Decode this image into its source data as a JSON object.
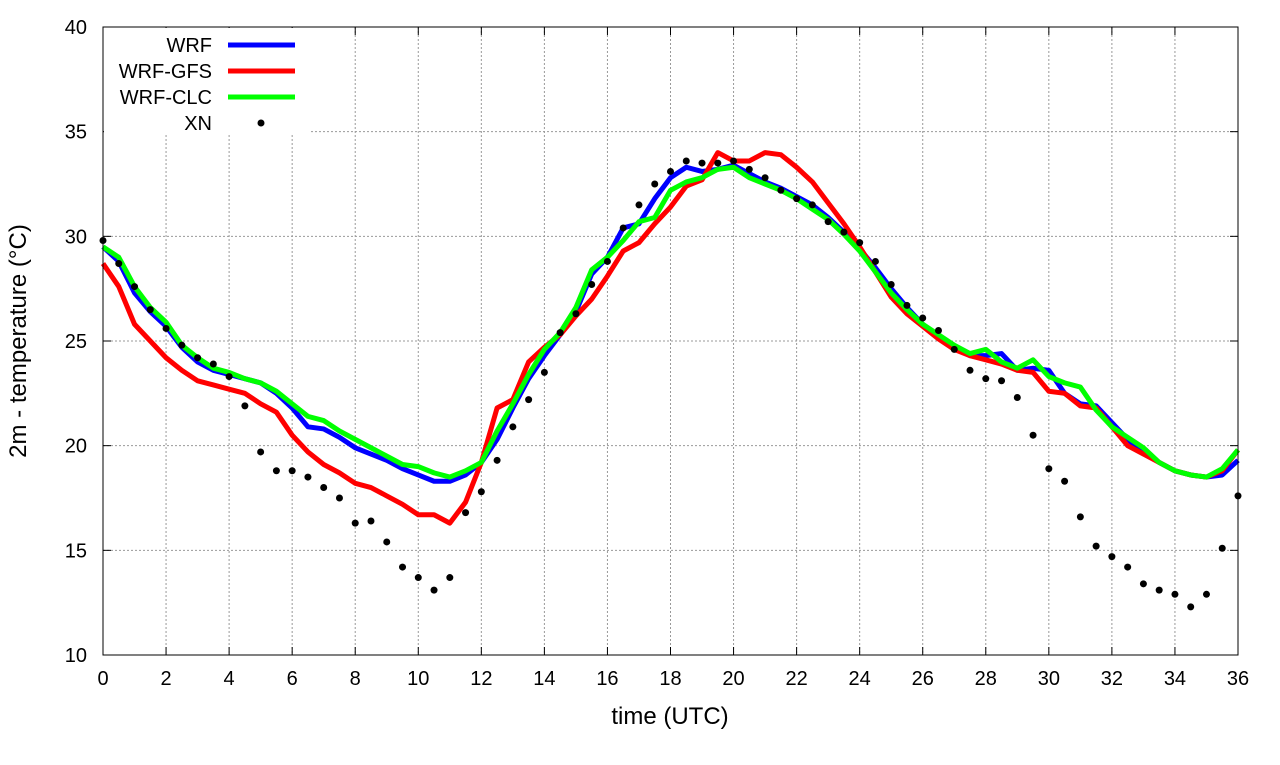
{
  "chart_data": {
    "type": "line",
    "title": "",
    "xlabel": "time (UTC)",
    "ylabel": "2m - temperature (°C)",
    "xlim": [
      0,
      36
    ],
    "ylim": [
      10,
      40
    ],
    "xticks": [
      0,
      2,
      4,
      6,
      8,
      10,
      12,
      14,
      16,
      18,
      20,
      22,
      24,
      26,
      28,
      30,
      32,
      34,
      36
    ],
    "yticks": [
      10,
      15,
      20,
      25,
      30,
      35,
      40
    ],
    "grid": true,
    "legend": "top-left",
    "x": [
      0,
      0.5,
      1,
      1.5,
      2,
      2.5,
      3,
      3.5,
      4,
      4.5,
      5,
      5.5,
      6,
      6.5,
      7,
      7.5,
      8,
      8.5,
      9,
      9.5,
      10,
      10.5,
      11,
      11.5,
      12,
      12.5,
      13,
      13.5,
      14,
      14.5,
      15,
      15.5,
      16,
      16.5,
      17,
      17.5,
      18,
      18.5,
      19,
      19.5,
      20,
      20.5,
      21,
      21.5,
      22,
      22.5,
      23,
      23.5,
      24,
      24.5,
      25,
      25.5,
      26,
      26.5,
      27,
      27.5,
      28,
      28.5,
      29,
      29.5,
      30,
      30.5,
      31,
      31.5,
      32,
      32.5,
      33,
      33.5,
      34,
      34.5,
      35,
      35.5,
      36
    ],
    "series": [
      {
        "name": "WRF",
        "style": "line",
        "color": "#0000ff",
        "values": [
          29.5,
          28.8,
          27.3,
          26.4,
          25.7,
          24.7,
          24.0,
          23.6,
          23.4,
          23.2,
          23.0,
          22.5,
          21.8,
          20.9,
          20.8,
          20.4,
          19.9,
          19.6,
          19.3,
          18.9,
          18.6,
          18.3,
          18.3,
          18.6,
          19.2,
          20.3,
          21.8,
          23.2,
          24.3,
          25.3,
          26.4,
          28.2,
          29.0,
          30.4,
          30.6,
          31.8,
          32.8,
          33.3,
          33.1,
          33.2,
          33.4,
          33.0,
          32.6,
          32.3,
          31.9,
          31.5,
          30.9,
          30.2,
          29.4,
          28.5,
          27.5,
          26.6,
          25.8,
          25.2,
          24.7,
          24.3,
          24.3,
          24.4,
          23.6,
          23.7,
          23.6,
          22.5,
          22.0,
          21.9,
          21.1,
          20.3,
          19.7,
          19.2,
          18.8,
          18.6,
          18.5,
          18.6,
          19.3
        ]
      },
      {
        "name": "WRF-GFS",
        "style": "line",
        "color": "#ff0000",
        "values": [
          28.7,
          27.6,
          25.8,
          25.0,
          24.2,
          23.6,
          23.1,
          22.9,
          22.7,
          22.5,
          22.0,
          21.6,
          20.5,
          19.7,
          19.1,
          18.7,
          18.2,
          18.0,
          17.6,
          17.2,
          16.7,
          16.7,
          16.3,
          17.3,
          19.2,
          21.8,
          22.2,
          24.0,
          24.7,
          25.3,
          26.2,
          27.0,
          28.1,
          29.3,
          29.7,
          30.6,
          31.4,
          32.4,
          32.7,
          34.0,
          33.6,
          33.6,
          34.0,
          33.9,
          33.3,
          32.6,
          31.6,
          30.6,
          29.5,
          28.3,
          27.1,
          26.3,
          25.7,
          25.1,
          24.6,
          24.3,
          24.1,
          23.9,
          23.6,
          23.5,
          22.6,
          22.5,
          21.9,
          21.8,
          20.9,
          20.0,
          19.6,
          19.2,
          18.8,
          18.6,
          18.5,
          18.8,
          19.8
        ]
      },
      {
        "name": "WRF-CLC",
        "style": "line",
        "color": "#00ff00",
        "values": [
          29.5,
          29.0,
          27.6,
          26.6,
          25.9,
          24.8,
          24.2,
          23.7,
          23.5,
          23.2,
          23.0,
          22.6,
          22.0,
          21.4,
          21.2,
          20.7,
          20.3,
          19.9,
          19.5,
          19.1,
          19.0,
          18.7,
          18.5,
          18.8,
          19.2,
          20.7,
          22.0,
          23.4,
          24.6,
          25.4,
          26.6,
          28.4,
          29.0,
          29.8,
          30.7,
          30.9,
          32.2,
          32.6,
          32.8,
          33.2,
          33.3,
          32.8,
          32.5,
          32.2,
          31.8,
          31.3,
          30.8,
          30.1,
          29.3,
          28.3,
          27.3,
          26.5,
          25.8,
          25.3,
          24.8,
          24.4,
          24.6,
          24.0,
          23.7,
          24.1,
          23.3,
          23.0,
          22.8,
          21.7,
          20.9,
          20.4,
          19.9,
          19.2,
          18.8,
          18.6,
          18.5,
          18.9,
          19.8
        ]
      },
      {
        "name": "XN",
        "style": "points",
        "color": "#000000",
        "values": [
          29.8,
          28.7,
          27.6,
          26.5,
          25.6,
          24.8,
          24.2,
          23.9,
          23.3,
          21.9,
          19.7,
          18.8,
          18.8,
          18.5,
          18.0,
          17.5,
          16.3,
          16.4,
          15.4,
          14.2,
          13.7,
          13.1,
          13.7,
          16.8,
          17.8,
          19.3,
          20.9,
          22.2,
          23.5,
          25.4,
          26.3,
          27.7,
          28.8,
          30.4,
          31.5,
          32.5,
          33.1,
          33.6,
          33.5,
          33.5,
          33.6,
          33.2,
          32.8,
          32.2,
          31.8,
          31.5,
          30.7,
          30.2,
          29.7,
          28.8,
          27.7,
          26.7,
          26.1,
          25.5,
          24.6,
          23.6,
          23.2,
          23.1,
          22.3,
          20.5,
          18.9,
          18.3,
          16.6,
          15.2,
          14.7,
          14.2,
          13.4,
          13.1,
          12.9,
          12.3,
          12.9,
          15.1,
          17.6
        ]
      }
    ]
  }
}
